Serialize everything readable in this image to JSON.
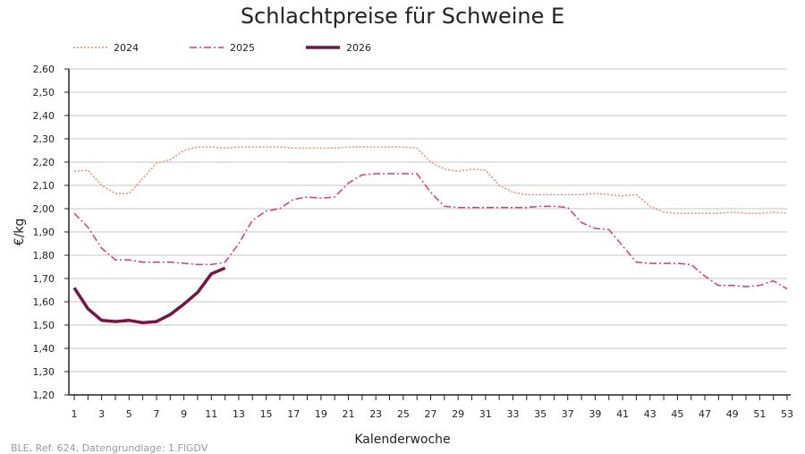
{
  "chart_data": {
    "type": "line",
    "title": "Schlachtpreise für Schweine E",
    "xlabel": "Kalenderwoche",
    "ylabel": "€/kg",
    "ylim": [
      1.2,
      2.6
    ],
    "yticks": [
      "1,20",
      "1,30",
      "1,40",
      "1,50",
      "1,60",
      "1,70",
      "1,80",
      "1,90",
      "2,00",
      "2,10",
      "2,20",
      "2,30",
      "2,40",
      "2,50",
      "2,60"
    ],
    "xlim": [
      1,
      53
    ],
    "xticks": [
      "1",
      "3",
      "5",
      "7",
      "9",
      "11",
      "13",
      "15",
      "17",
      "19",
      "21",
      "23",
      "25",
      "27",
      "29",
      "31",
      "33",
      "35",
      "37",
      "39",
      "41",
      "43",
      "45",
      "47",
      "49",
      "51",
      "53"
    ],
    "grid": true,
    "legend": "top-left",
    "series": [
      {
        "name": "2024",
        "color": "#f08a70",
        "style": "dotted",
        "values": [
          2.16,
          2.165,
          2.1,
          2.065,
          2.065,
          2.13,
          2.195,
          2.21,
          2.25,
          2.265,
          2.265,
          2.26,
          2.265,
          2.265,
          2.265,
          2.265,
          2.26,
          2.26,
          2.26,
          2.26,
          2.265,
          2.265,
          2.265,
          2.265,
          2.265,
          2.26,
          2.2,
          2.17,
          2.16,
          2.17,
          2.165,
          2.1,
          2.07,
          2.06,
          2.06,
          2.06,
          2.06,
          2.06,
          2.065,
          2.06,
          2.055,
          2.06,
          2.01,
          1.985,
          1.98,
          1.98,
          1.98,
          1.98,
          1.985,
          1.98,
          1.98,
          1.985,
          1.98
        ]
      },
      {
        "name": "2025",
        "color": "#d63d6e",
        "style": "dashdot",
        "values": [
          1.98,
          1.92,
          1.83,
          1.78,
          1.78,
          1.77,
          1.77,
          1.77,
          1.765,
          1.76,
          1.76,
          1.77,
          1.85,
          1.95,
          1.99,
          2.0,
          2.04,
          2.05,
          2.045,
          2.05,
          2.11,
          2.145,
          2.15,
          2.15,
          2.15,
          2.15,
          2.07,
          2.01,
          2.005,
          2.005,
          2.005,
          2.005,
          2.005,
          2.005,
          2.01,
          2.01,
          2.005,
          1.94,
          1.915,
          1.91,
          1.84,
          1.77,
          1.765,
          1.765,
          1.765,
          1.76,
          1.71,
          1.67,
          1.67,
          1.665,
          1.67,
          1.69,
          1.655
        ]
      },
      {
        "name": "2026",
        "color": "#7a1246",
        "style": "solid",
        "values": [
          1.66,
          1.57,
          1.52,
          1.515,
          1.52,
          1.51,
          1.515,
          1.545,
          1.59,
          1.64,
          1.72,
          1.745
        ]
      }
    ]
  },
  "footer": "BLE, Ref. 624, Datengrundlage: 1.FlGDV"
}
